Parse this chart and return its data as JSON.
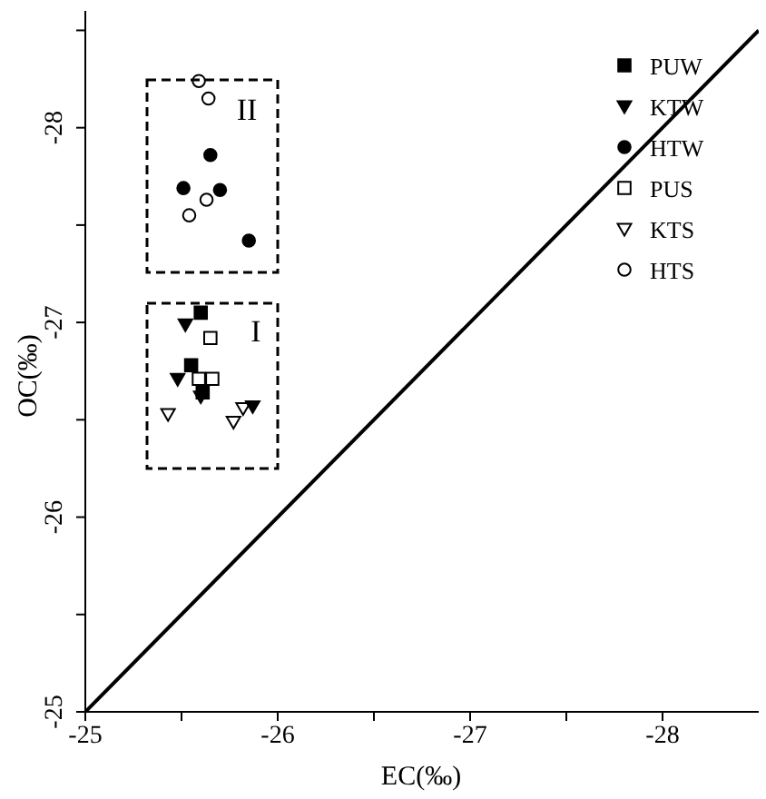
{
  "chart_data": {
    "type": "scatter",
    "xlabel": "EC(‰)",
    "ylabel": "OC(‰)",
    "xlim": [
      -25,
      -28.5
    ],
    "ylim": [
      -25,
      -28.6
    ],
    "xticks": [
      -25,
      {
        "value": -25.5,
        "label": null
      },
      -26,
      {
        "value": -26.5,
        "label": null
      },
      -27,
      {
        "value": -27.5,
        "label": null
      },
      -28
    ],
    "yticks": [
      -25,
      {
        "value": -25.5,
        "label": null
      },
      -26,
      {
        "value": -26.5,
        "label": null
      },
      -27,
      {
        "value": -27.5,
        "label": null
      },
      -28,
      {
        "value": -28.5,
        "label": null
      }
    ],
    "grid": false,
    "legend": "top right",
    "series": [
      {
        "name": "PUW",
        "color": "#000000",
        "marker": "square",
        "x": [
          -25.6,
          -25.55,
          -25.61
        ],
        "values": [
          -27.05,
          -26.78,
          -26.64
        ]
      },
      {
        "name": "KTW",
        "color": "#000000",
        "marker": "triangle-down",
        "x": [
          -25.52,
          -25.48,
          -25.6,
          -25.87
        ],
        "values": [
          -26.99,
          -26.71,
          -26.62,
          -26.57
        ]
      },
      {
        "name": "HTW",
        "color": "#000000",
        "marker": "circle",
        "x": [
          -25.65,
          -25.51,
          -25.7,
          -25.85
        ],
        "values": [
          -27.86,
          -27.69,
          -27.68,
          -27.42
        ]
      },
      {
        "name": "PUS",
        "color": "#000000",
        "marker": "square-open",
        "x": [
          -25.65,
          -25.66,
          -25.59
        ],
        "values": [
          -26.92,
          -26.71,
          -26.71
        ]
      },
      {
        "name": "KTS",
        "color": "#000000",
        "marker": "triangle-down-open",
        "x": [
          -25.43,
          -25.77,
          -25.82
        ],
        "values": [
          -26.53,
          -26.49,
          -26.56
        ]
      },
      {
        "name": "HTS",
        "color": "#000000",
        "marker": "circle-open",
        "x": [
          -25.59,
          -25.64,
          -25.63,
          -25.54
        ],
        "values": [
          -28.24,
          -28.15,
          -27.63,
          -27.55
        ]
      },
      {
        "type": "line",
        "color": "#000000",
        "line_style": "solid",
        "marker": "none",
        "x": [
          -25,
          -28.5
        ],
        "values": [
          -25,
          -28.5
        ]
      }
    ],
    "annotations": [
      "I",
      "II"
    ]
  }
}
